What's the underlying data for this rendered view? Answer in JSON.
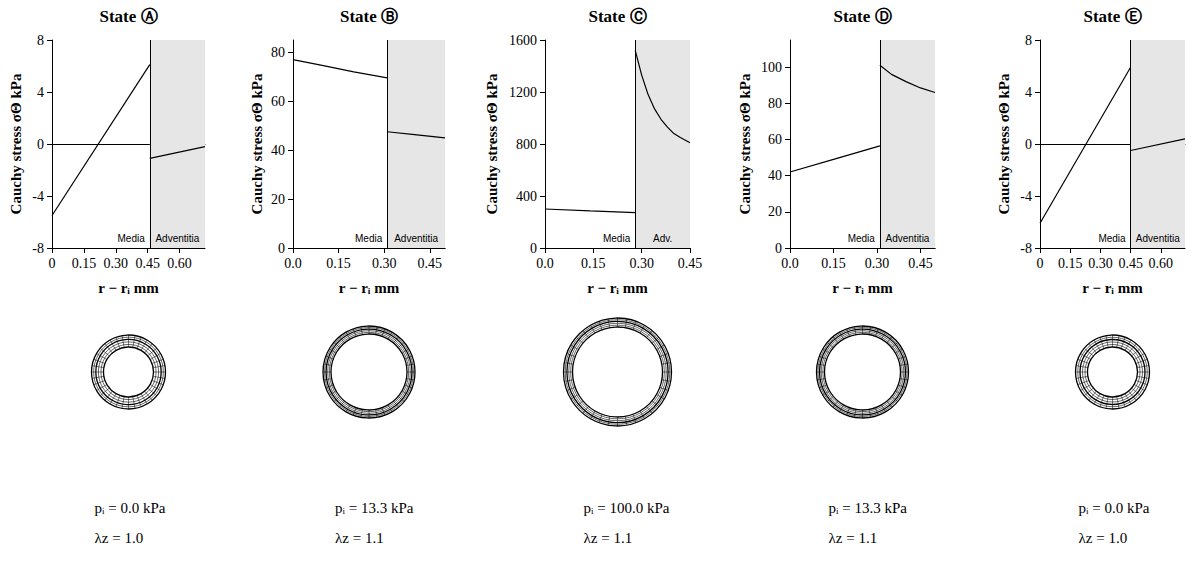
{
  "chart_data": [
    {
      "type": "line",
      "title": "State Ⓐ",
      "y_label": "Cauchy stress σΘ kPa",
      "x_label": "r − rᵢ mm",
      "xlim": [
        0,
        0.72
      ],
      "xticks": [
        0,
        0.15,
        {
          "value": 0.3,
          "label": "0.30"
        },
        0.45,
        {
          "value": 0.6,
          "label": "0.60"
        }
      ],
      "ylim": [
        -8,
        8
      ],
      "yticks": [
        -8,
        -4,
        0,
        4,
        8
      ],
      "grid": false,
      "regions": [
        {
          "label": "Media",
          "from": 0,
          "to": 0.46
        },
        {
          "label": "Adventitia",
          "from": 0.46,
          "to": 0.72,
          "color": "#e6e6e6"
        }
      ],
      "series": [
        {
          "x": [
            0,
            0.46
          ],
          "values": [
            -5.5,
            6.1
          ],
          "color": "#000000"
        },
        {
          "x": [
            0.46,
            0.72
          ],
          "values": [
            -1.1,
            -0.2
          ],
          "color": "#000000"
        }
      ],
      "annotations": [
        "pᵢ = 0.0 kPa",
        "λz = 1.0"
      ]
    },
    {
      "type": "line",
      "title": "State Ⓑ",
      "y_label": "Cauchy stress σΘ kPa",
      "x_label": "r − rᵢ mm",
      "xlim": [
        0,
        0.5
      ],
      "xticks": [
        {
          "value": 0,
          "label": "0.0"
        },
        0.15,
        {
          "value": 0.3,
          "label": "0.30"
        },
        0.45
      ],
      "ylim": [
        0,
        85
      ],
      "yticks": [
        0,
        20,
        40,
        60,
        80
      ],
      "grid": false,
      "regions": [
        {
          "label": "Media",
          "from": 0,
          "to": 0.31
        },
        {
          "label": "Adventitia",
          "from": 0.31,
          "to": 0.5,
          "color": "#e6e6e6"
        }
      ],
      "series": [
        {
          "x": [
            0,
            0.1,
            0.2,
            0.31
          ],
          "values": [
            77,
            74.5,
            72,
            69.5
          ],
          "color": "#000000"
        },
        {
          "x": [
            0.31,
            0.4,
            0.5
          ],
          "values": [
            47.5,
            46.3,
            45
          ],
          "color": "#000000"
        }
      ],
      "annotations": [
        "pᵢ = 13.3 kPa",
        "λz = 1.1"
      ]
    },
    {
      "type": "line",
      "title": "State Ⓒ",
      "y_label": "Cauchy stress σΘ kPa",
      "x_label": "r − rᵢ mm",
      "xlim": [
        0,
        0.45
      ],
      "xticks": [
        {
          "value": 0,
          "label": "0.0"
        },
        0.15,
        {
          "value": 0.3,
          "label": "0.30"
        },
        0.45
      ],
      "ylim": [
        0,
        1600
      ],
      "yticks": [
        0,
        400,
        800,
        1200,
        1600
      ],
      "grid": false,
      "regions": [
        {
          "label": "Media",
          "from": 0,
          "to": 0.28
        },
        {
          "label": "Adv.",
          "from": 0.28,
          "to": 0.45,
          "color": "#e6e6e6"
        }
      ],
      "series": [
        {
          "x": [
            0,
            0.14,
            0.28
          ],
          "values": [
            300,
            285,
            272
          ],
          "color": "#000000"
        },
        {
          "x": [
            0.28,
            0.3,
            0.32,
            0.34,
            0.36,
            0.38,
            0.4,
            0.42,
            0.45
          ],
          "values": [
            1520,
            1330,
            1180,
            1070,
            990,
            930,
            880,
            850,
            810
          ],
          "color": "#000000"
        }
      ],
      "annotations": [
        "pᵢ = 100.0 kPa",
        "λz = 1.1"
      ]
    },
    {
      "type": "line",
      "title": "State Ⓓ",
      "y_label": "Cauchy stress σΘ kPa",
      "x_label": "r − rᵢ mm",
      "xlim": [
        0,
        0.5
      ],
      "xticks": [
        {
          "value": 0,
          "label": "0.0"
        },
        0.15,
        {
          "value": 0.3,
          "label": "0.30"
        },
        0.45
      ],
      "ylim": [
        0,
        115
      ],
      "yticks": [
        0,
        20,
        40,
        60,
        80,
        100
      ],
      "grid": false,
      "regions": [
        {
          "label": "Media",
          "from": 0,
          "to": 0.31
        },
        {
          "label": "Adventitia",
          "from": 0.31,
          "to": 0.5,
          "color": "#e6e6e6"
        }
      ],
      "series": [
        {
          "x": [
            0,
            0.15,
            0.31
          ],
          "values": [
            42,
            49,
            56.5
          ],
          "color": "#000000"
        },
        {
          "x": [
            0.31,
            0.35,
            0.4,
            0.45,
            0.5
          ],
          "values": [
            101,
            96,
            92,
            88.5,
            86
          ],
          "color": "#000000"
        }
      ],
      "annotations": [
        "pᵢ = 13.3 kPa",
        "λz = 1.1"
      ]
    },
    {
      "type": "line",
      "title": "State Ⓔ",
      "y_label": "Cauchy stress σΘ kPa",
      "x_label": "r − rᵢ mm",
      "xlim": [
        0,
        0.72
      ],
      "xticks": [
        0,
        0.15,
        {
          "value": 0.3,
          "label": "0.30"
        },
        0.45,
        {
          "value": 0.6,
          "label": "0.60"
        }
      ],
      "ylim": [
        -8,
        8
      ],
      "yticks": [
        -8,
        -4,
        0,
        4,
        8
      ],
      "grid": false,
      "regions": [
        {
          "label": "Media",
          "from": 0,
          "to": 0.45
        },
        {
          "label": "Adventitia",
          "from": 0.45,
          "to": 0.72,
          "color": "#e6e6e6"
        }
      ],
      "series": [
        {
          "x": [
            0,
            0.45
          ],
          "values": [
            -6.1,
            5.9
          ],
          "color": "#000000"
        },
        {
          "x": [
            0.45,
            0.72
          ],
          "values": [
            -0.5,
            0.4
          ],
          "color": "#000000"
        }
      ],
      "annotations": [
        "pᵢ = 0.0 kPa",
        "λz = 1.0"
      ]
    }
  ]
}
